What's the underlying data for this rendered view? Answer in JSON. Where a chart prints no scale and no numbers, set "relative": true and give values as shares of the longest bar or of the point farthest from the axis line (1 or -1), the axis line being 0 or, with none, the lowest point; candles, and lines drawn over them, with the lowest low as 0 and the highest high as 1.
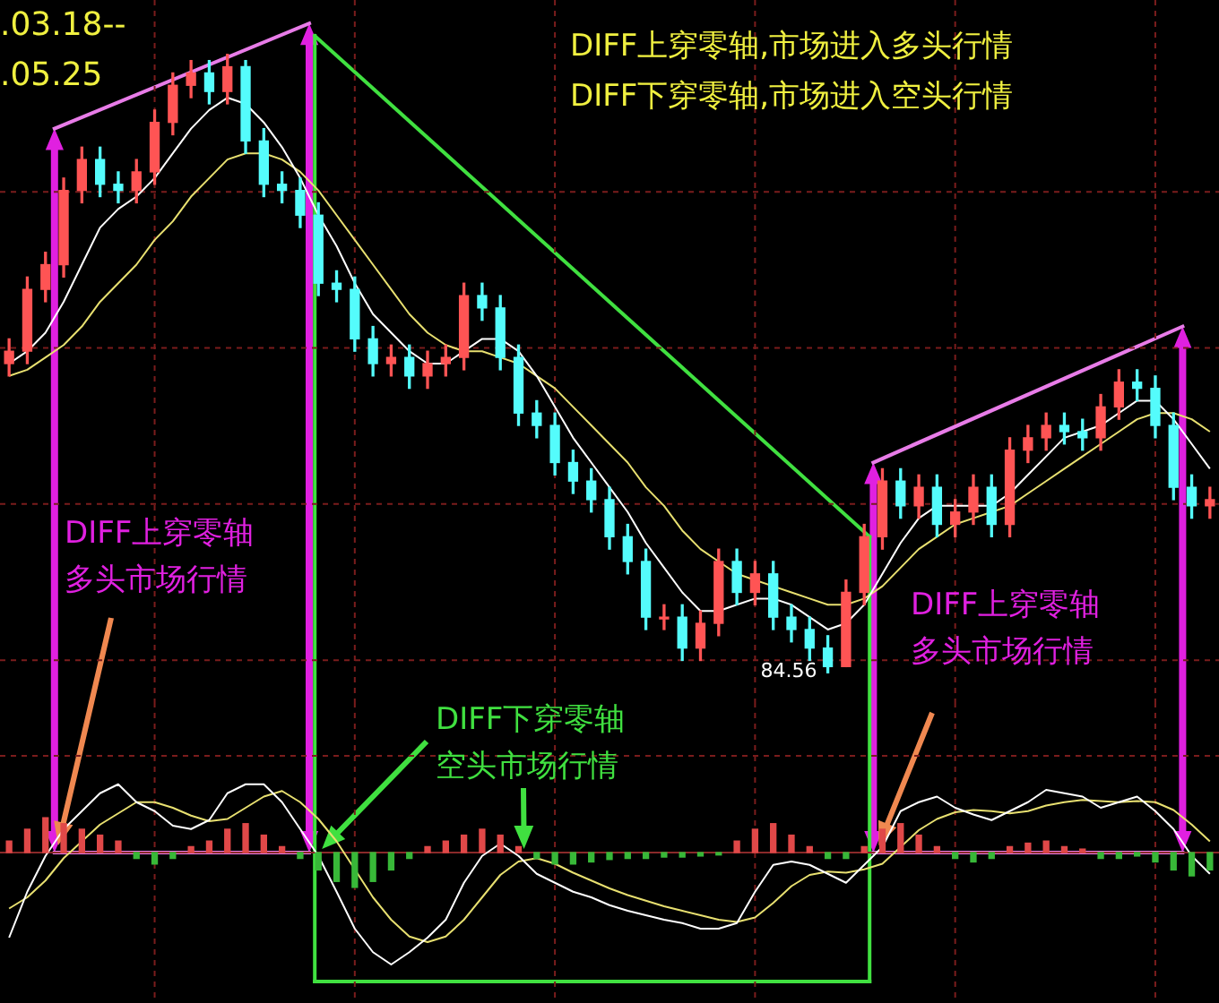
{
  "chart_data": [
    {
      "type": "candlestick",
      "relative": true,
      "grid": true,
      "categories": [
        null,
        null,
        null,
        null,
        null,
        null,
        null,
        null,
        null,
        null,
        null,
        null,
        null,
        null,
        null,
        null,
        null,
        null,
        null,
        null,
        null,
        null,
        null,
        null,
        null,
        null,
        null,
        null,
        null,
        null,
        null,
        null,
        null,
        null,
        null,
        null,
        null,
        null,
        null,
        null,
        null,
        null,
        null,
        null,
        null,
        null,
        null,
        null,
        null,
        null,
        null,
        null,
        null,
        null,
        null,
        null,
        null,
        null,
        null,
        null,
        null,
        null,
        null,
        null,
        null,
        null,
        null
      ],
      "ohlc": [
        [
          0.5,
          0.54,
          0.48,
          0.52
        ],
        [
          0.52,
          0.64,
          0.5,
          0.62
        ],
        [
          0.62,
          0.68,
          0.6,
          0.66
        ],
        [
          0.66,
          0.8,
          0.64,
          0.78
        ],
        [
          0.78,
          0.85,
          0.76,
          0.83
        ],
        [
          0.83,
          0.85,
          0.77,
          0.79
        ],
        [
          0.79,
          0.81,
          0.76,
          0.78
        ],
        [
          0.78,
          0.83,
          0.76,
          0.81
        ],
        [
          0.81,
          0.91,
          0.79,
          0.89
        ],
        [
          0.89,
          0.97,
          0.87,
          0.95
        ],
        [
          0.95,
          0.99,
          0.93,
          0.97
        ],
        [
          0.97,
          0.99,
          0.92,
          0.94
        ],
        [
          0.94,
          1.0,
          0.92,
          0.98
        ],
        [
          0.98,
          0.99,
          0.84,
          0.86
        ],
        [
          0.86,
          0.88,
          0.77,
          0.79
        ],
        [
          0.79,
          0.81,
          0.76,
          0.78
        ],
        [
          0.78,
          0.8,
          0.72,
          0.74
        ],
        [
          0.74,
          0.76,
          0.61,
          0.63
        ],
        [
          0.63,
          0.65,
          0.6,
          0.62
        ],
        [
          0.62,
          0.64,
          0.52,
          0.54
        ],
        [
          0.54,
          0.56,
          0.48,
          0.5
        ],
        [
          0.5,
          0.53,
          0.48,
          0.51
        ],
        [
          0.51,
          0.53,
          0.46,
          0.48
        ],
        [
          0.48,
          0.52,
          0.46,
          0.5
        ],
        [
          0.5,
          0.53,
          0.48,
          0.51
        ],
        [
          0.51,
          0.63,
          0.49,
          0.61
        ],
        [
          0.61,
          0.63,
          0.57,
          0.59
        ],
        [
          0.59,
          0.61,
          0.49,
          0.51
        ],
        [
          0.51,
          0.53,
          0.4,
          0.42
        ],
        [
          0.42,
          0.44,
          0.38,
          0.4
        ],
        [
          0.4,
          0.42,
          0.32,
          0.34
        ],
        [
          0.34,
          0.36,
          0.29,
          0.31
        ],
        [
          0.31,
          0.33,
          0.26,
          0.28
        ],
        [
          0.28,
          0.3,
          0.2,
          0.22
        ],
        [
          0.22,
          0.24,
          0.16,
          0.18
        ],
        [
          0.18,
          0.2,
          0.07,
          0.09
        ],
        [
          0.09,
          0.11,
          0.07,
          0.09
        ],
        [
          0.09,
          0.11,
          0.02,
          0.04
        ],
        [
          0.04,
          0.1,
          0.02,
          0.08
        ],
        [
          0.08,
          0.2,
          0.06,
          0.18
        ],
        [
          0.18,
          0.2,
          0.11,
          0.13
        ],
        [
          0.13,
          0.18,
          0.11,
          0.16
        ],
        [
          0.16,
          0.18,
          0.07,
          0.09
        ],
        [
          0.09,
          0.11,
          0.05,
          0.07
        ],
        [
          0.07,
          0.09,
          0.02,
          0.04
        ],
        [
          0.04,
          0.06,
          0,
          0.01
        ],
        [
          0.01,
          0.15,
          0.01,
          0.13
        ],
        [
          0.13,
          0.24,
          0.11,
          0.22
        ],
        [
          0.22,
          0.33,
          0.2,
          0.31
        ],
        [
          0.31,
          0.33,
          0.25,
          0.27
        ],
        [
          0.27,
          0.32,
          0.25,
          0.3
        ],
        [
          0.3,
          0.32,
          0.22,
          0.24
        ],
        [
          0.24,
          0.28,
          0.22,
          0.26
        ],
        [
          0.26,
          0.32,
          0.24,
          0.3
        ],
        [
          0.3,
          0.32,
          0.22,
          0.24
        ],
        [
          0.24,
          0.38,
          0.22,
          0.36
        ],
        [
          0.36,
          0.4,
          0.34,
          0.38
        ],
        [
          0.38,
          0.42,
          0.36,
          0.4
        ],
        [
          0.4,
          0.42,
          0.37,
          0.39
        ],
        [
          0.39,
          0.41,
          0.36,
          0.38
        ],
        [
          0.38,
          0.45,
          0.36,
          0.43
        ],
        [
          0.43,
          0.49,
          0.41,
          0.47
        ],
        [
          0.47,
          0.49,
          0.44,
          0.46
        ],
        [
          0.46,
          0.48,
          0.38,
          0.4
        ],
        [
          0.4,
          0.42,
          0.28,
          0.3
        ],
        [
          0.3,
          0.32,
          0.25,
          0.27
        ],
        [
          0.27,
          0.3,
          0.25,
          0.28
        ]
      ],
      "series": [
        {
          "type": "line",
          "color": "#ffffff",
          "values": [
            0.5,
            0.52,
            0.55,
            0.6,
            0.66,
            0.72,
            0.75,
            0.77,
            0.8,
            0.84,
            0.88,
            0.91,
            0.93,
            0.92,
            0.89,
            0.85,
            0.8,
            0.74,
            0.69,
            0.63,
            0.58,
            0.55,
            0.52,
            0.5,
            0.5,
            0.52,
            0.54,
            0.54,
            0.52,
            0.48,
            0.43,
            0.38,
            0.34,
            0.3,
            0.26,
            0.21,
            0.17,
            0.13,
            0.1,
            0.1,
            0.11,
            0.12,
            0.12,
            0.11,
            0.09,
            0.07,
            0.08,
            0.11,
            0.16,
            0.21,
            0.25,
            0.27,
            0.27,
            0.27,
            0.27,
            0.29,
            0.32,
            0.35,
            0.38,
            0.39,
            0.4,
            0.42,
            0.44,
            0.44,
            0.41,
            0.37,
            0.33
          ]
        },
        {
          "type": "line",
          "color": "#e8e070",
          "values": [
            0.48,
            0.49,
            0.51,
            0.53,
            0.56,
            0.6,
            0.63,
            0.66,
            0.7,
            0.73,
            0.77,
            0.8,
            0.83,
            0.84,
            0.84,
            0.83,
            0.81,
            0.78,
            0.74,
            0.7,
            0.66,
            0.62,
            0.58,
            0.55,
            0.53,
            0.52,
            0.52,
            0.51,
            0.5,
            0.48,
            0.46,
            0.43,
            0.4,
            0.37,
            0.34,
            0.3,
            0.27,
            0.23,
            0.2,
            0.18,
            0.16,
            0.15,
            0.14,
            0.13,
            0.12,
            0.11,
            0.11,
            0.12,
            0.14,
            0.17,
            0.2,
            0.22,
            0.24,
            0.25,
            0.26,
            0.27,
            0.29,
            0.31,
            0.33,
            0.35,
            0.37,
            0.39,
            0.41,
            0.42,
            0.42,
            0.41,
            0.39
          ]
        }
      ],
      "annotations": [
        ".03.18--",
        ".05.25",
        "DIFF上穿零轴,市场进入多头行情",
        "DIFF下穿零轴,市场进入空头行情",
        "DIFF上穿零轴多头市场行情",
        "DIFF上穿零轴多头市场行情",
        "84.56"
      ]
    },
    {
      "type": "line",
      "relative": true,
      "grid": true,
      "categories": [
        null,
        null,
        null,
        null,
        null,
        null,
        null,
        null,
        null,
        null,
        null,
        null,
        null,
        null,
        null,
        null,
        null,
        null,
        null,
        null,
        null,
        null,
        null,
        null,
        null,
        null,
        null,
        null,
        null,
        null,
        null,
        null,
        null,
        null,
        null,
        null,
        null,
        null,
        null,
        null,
        null,
        null,
        null,
        null,
        null,
        null,
        null,
        null,
        null,
        null,
        null,
        null,
        null,
        null,
        null,
        null,
        null,
        null,
        null,
        null,
        null,
        null,
        null,
        null,
        null,
        null,
        null
      ],
      "series": [
        {
          "color": "#ffffff",
          "values": [
            -0.76,
            -0.35,
            -0.03,
            0.21,
            0.37,
            0.53,
            0.61,
            0.45,
            0.37,
            0.24,
            0.21,
            0.29,
            0.53,
            0.61,
            0.61,
            0.45,
            0.21,
            -0.03,
            -0.35,
            -0.68,
            -0.89,
            -1,
            -0.89,
            -0.76,
            -0.6,
            -0.27,
            -0.03,
            0.08,
            -0.03,
            -0.19,
            -0.27,
            -0.35,
            -0.4,
            -0.47,
            -0.52,
            -0.56,
            -0.6,
            -0.63,
            -0.68,
            -0.68,
            -0.63,
            -0.35,
            -0.11,
            -0.08,
            -0.11,
            -0.19,
            -0.27,
            -0.11,
            0.05,
            0.37,
            0.45,
            0.5,
            0.4,
            0.34,
            0.29,
            0.37,
            0.45,
            0.56,
            0.53,
            0.5,
            0.4,
            0.45,
            0.5,
            0.37,
            0.21,
            -0.03,
            -0.19
          ]
        },
        {
          "color": "#e8e070",
          "values": [
            -0.5,
            -0.4,
            -0.25,
            -0.05,
            0.1,
            0.25,
            0.35,
            0.45,
            0.45,
            0.4,
            0.33,
            0.28,
            0.3,
            0.4,
            0.5,
            0.55,
            0.45,
            0.3,
            0.1,
            -0.15,
            -0.4,
            -0.6,
            -0.75,
            -0.8,
            -0.75,
            -0.6,
            -0.4,
            -0.2,
            -0.08,
            -0.05,
            -0.1,
            -0.18,
            -0.25,
            -0.32,
            -0.38,
            -0.43,
            -0.48,
            -0.52,
            -0.56,
            -0.6,
            -0.62,
            -0.58,
            -0.45,
            -0.3,
            -0.2,
            -0.17,
            -0.18,
            -0.15,
            -0.1,
            0.05,
            0.2,
            0.3,
            0.36,
            0.38,
            0.37,
            0.35,
            0.37,
            0.42,
            0.45,
            0.47,
            0.46,
            0.45,
            0.46,
            0.45,
            0.38,
            0.25,
            0.1
          ]
        }
      ],
      "annotations": [
        "DIFF下穿零轴空头市场行情"
      ]
    },
    {
      "type": "bar",
      "relative": true,
      "categories": [
        null,
        null,
        null,
        null,
        null,
        null,
        null,
        null,
        null,
        null,
        null,
        null,
        null,
        null,
        null,
        null,
        null,
        null,
        null,
        null,
        null,
        null,
        null,
        null,
        null,
        null,
        null,
        null,
        null,
        null,
        null,
        null,
        null,
        null,
        null,
        null,
        null,
        null,
        null,
        null,
        null,
        null,
        null,
        null,
        null,
        null,
        null,
        null,
        null,
        null,
        null,
        null,
        null,
        null,
        null,
        null,
        null,
        null,
        null,
        null,
        null,
        null,
        null,
        null,
        null,
        null,
        null
      ],
      "values": [
        0.33,
        0.67,
        1,
        0.83,
        0.67,
        0.5,
        0.33,
        -0.17,
        -0.33,
        -0.17,
        0.17,
        0.33,
        0.67,
        0.83,
        0.5,
        0.17,
        -0.17,
        -0.5,
        -0.83,
        -1,
        -0.83,
        -0.5,
        -0.17,
        0.17,
        0.33,
        0.5,
        0.67,
        0.5,
        0.17,
        -0.17,
        -0.33,
        -0.33,
        -0.27,
        -0.2,
        -0.17,
        -0.17,
        -0.13,
        -0.13,
        -0.1,
        -0.07,
        0.33,
        0.67,
        0.83,
        0.5,
        0.17,
        -0.17,
        -0.17,
        0.17,
        0.67,
        0.83,
        0.5,
        0.17,
        -0.17,
        -0.27,
        -0.17,
        0.17,
        0.27,
        0.33,
        0.17,
        0.1,
        -0.17,
        -0.17,
        -0.1,
        -0.27,
        -0.5,
        -0.67,
        -0.5
      ],
      "colors": [
        "#e04848",
        "#e04848",
        "#e04848",
        "#e04848",
        "#e04848",
        "#e04848",
        "#e04848",
        "#38b838",
        "#38b838",
        "#38b838",
        "#e04848",
        "#e04848",
        "#e04848",
        "#e04848",
        "#e04848",
        "#e04848",
        "#38b838",
        "#38b838",
        "#38b838",
        "#38b838",
        "#38b838",
        "#38b838",
        "#38b838",
        "#e04848",
        "#e04848",
        "#e04848",
        "#e04848",
        "#e04848",
        "#e04848",
        "#38b838",
        "#38b838",
        "#38b838",
        "#38b838",
        "#38b838",
        "#38b838",
        "#38b838",
        "#38b838",
        "#38b838",
        "#38b838",
        "#38b838",
        "#e04848",
        "#e04848",
        "#e04848",
        "#e04848",
        "#e04848",
        "#38b838",
        "#38b838",
        "#e04848",
        "#e04848",
        "#e04848",
        "#e04848",
        "#e04848",
        "#38b838",
        "#38b838",
        "#38b838",
        "#e04848",
        "#e04848",
        "#e04848",
        "#e04848",
        "#e04848",
        "#38b838",
        "#38b838",
        "#38b838",
        "#38b838",
        "#38b838",
        "#38b838",
        "#38b838"
      ]
    }
  ]
}
